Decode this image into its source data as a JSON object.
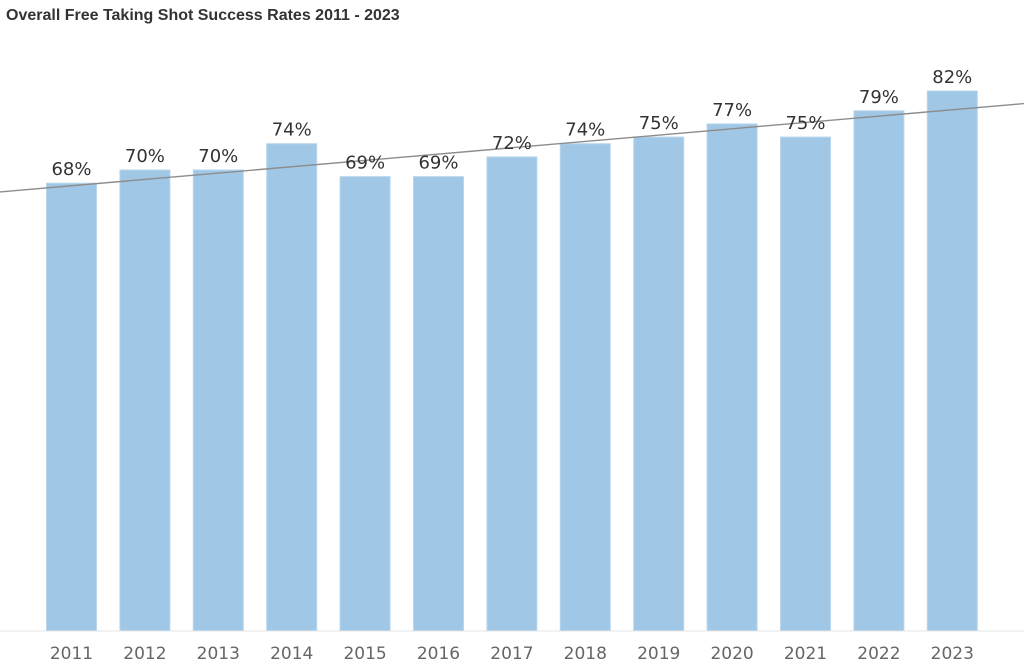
{
  "chart_data": {
    "type": "bar",
    "title": "Overall Free Taking Shot Success Rates 2011 - 2023",
    "categories": [
      "2011",
      "2012",
      "2013",
      "2014",
      "2015",
      "2016",
      "2017",
      "2018",
      "2019",
      "2020",
      "2021",
      "2022",
      "2023"
    ],
    "values": [
      68,
      70,
      70,
      74,
      69,
      69,
      72,
      74,
      75,
      77,
      75,
      79,
      82
    ],
    "data_labels": [
      "68%",
      "70%",
      "70%",
      "74%",
      "69%",
      "69%",
      "72%",
      "74%",
      "75%",
      "77%",
      "75%",
      "79%",
      "82%"
    ],
    "value_unit": "%",
    "xlabel": "",
    "ylabel": "",
    "ylim": [
      0,
      82
    ],
    "y_axis_shown": false,
    "grid": false,
    "legend": "none",
    "trend_line": {
      "type": "linear",
      "color": "#8c8c8c"
    },
    "colors": {
      "bar": "#a0c8e6",
      "bar_edge": "#b9d6ec",
      "label_text": "#333333",
      "tick_text": "#666666",
      "baseline": "#e6e6e6"
    }
  }
}
